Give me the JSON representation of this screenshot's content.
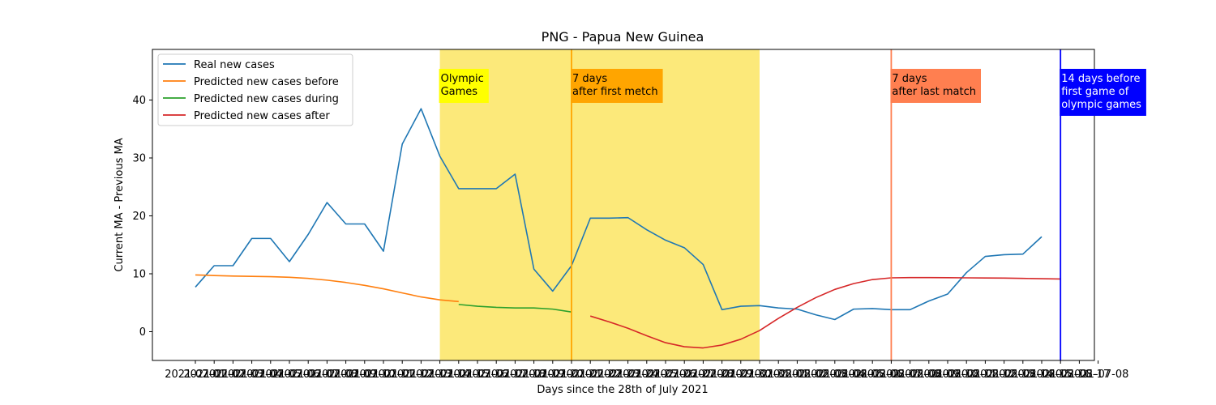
{
  "chart_data": {
    "type": "line",
    "title": "PNG - Papua New Guinea",
    "xlabel": "Days since the 28th of July 2021",
    "ylabel": "Current MA - Previous MA",
    "ylim": [
      -5,
      48.5
    ],
    "yticks": [
      0,
      10,
      20,
      30,
      40
    ],
    "x_tick_labels": [
      "2021-07-01",
      "2021-07-02",
      "2021-07-03",
      "2021-07-04",
      "2021-07-05",
      "2021-07-06",
      "2021-07-07",
      "2021-07-08",
      "2021-07-09",
      "2021-07-10",
      "2021-07-11",
      "2021-07-12",
      "2021-07-13",
      "2021-07-14",
      "2021-07-15",
      "2021-07-16",
      "2021-07-17",
      "2021-07-18",
      "2021-07-19",
      "2021-07-20",
      "2021-07-21",
      "2021-07-22",
      "2021-07-23",
      "2021-07-24",
      "2021-07-25",
      "2021-07-26",
      "2021-07-27",
      "2021-07-28",
      "2021-07-29",
      "2021-07-30",
      "2021-07-31",
      "2021-08-01",
      "2021-08-02",
      "2021-08-03",
      "2021-08-04",
      "2021-08-05",
      "2021-08-06",
      "2021-08-07",
      "2021-08-08",
      "2021-08-09",
      "2021-08-10",
      "2021-08-11",
      "2021-08-12",
      "2021-08-13",
      "2021-08-14",
      "2021-08-15",
      "2021-08-16",
      "2021-08-17",
      "2021-07-08"
    ],
    "series": [
      {
        "name": "Real new cases",
        "color": "#1f77b4",
        "start": 0,
        "values": [
          7.7,
          11.4,
          11.4,
          16.1,
          16.1,
          12.1,
          16.8,
          22.3,
          18.6,
          18.6,
          13.9,
          32.4,
          38.5,
          30.3,
          24.7,
          24.7,
          24.7,
          27.2,
          10.8,
          7.0,
          11.4,
          19.6,
          19.6,
          19.7,
          17.6,
          15.8,
          14.5,
          11.6,
          3.8,
          4.4,
          4.5,
          4.1,
          3.9,
          2.9,
          2.1,
          3.9,
          4.0,
          3.8,
          3.8,
          5.3,
          6.5,
          10.2,
          13.0,
          13.3,
          13.4,
          16.4
        ]
      },
      {
        "name": "Predicted new cases before",
        "color": "#ff7f0e",
        "start": 0,
        "values": [
          9.8,
          9.7,
          9.6,
          9.55,
          9.5,
          9.4,
          9.2,
          8.9,
          8.5,
          8.0,
          7.4,
          6.7,
          6.0,
          5.5,
          5.2
        ]
      },
      {
        "name": "Predicted new cases during",
        "color": "#2ca02c",
        "start": 14,
        "values": [
          4.7,
          4.4,
          4.2,
          4.1,
          4.1,
          3.9,
          3.4
        ]
      },
      {
        "name": "Predicted new cases after",
        "color": "#d62728",
        "start": 21,
        "values": [
          2.7,
          1.7,
          0.6,
          -0.7,
          -1.9,
          -2.6,
          -2.8,
          -2.3,
          -1.3,
          0.2,
          2.3,
          4.2,
          5.9,
          7.3,
          8.3,
          9.0,
          9.3,
          9.35,
          9.35,
          9.33,
          9.3,
          9.28,
          9.25,
          9.2,
          9.15,
          9.1
        ]
      }
    ],
    "shaded_span": {
      "from": 13,
      "to": 30,
      "color": "#fce97a"
    },
    "vlines": [
      {
        "x": 20,
        "color": "#ffa500",
        "label": "7 days\nafter first metch",
        "box_color": "#ffa500",
        "text_color": "#000000"
      },
      {
        "x": 37,
        "color": "#ff7f50",
        "label": "7 days\nafter last match",
        "box_color": "#ff7f50",
        "text_color": "#000000"
      },
      {
        "x": 46,
        "color": "#0000ff",
        "label": "14 days before\nfirst game of\nolympic games",
        "box_color": "#0000ff",
        "text_color": "#ffffff"
      }
    ],
    "span_label": {
      "x": 13,
      "label": "Olympic\nGames",
      "box_color": "#ffff00",
      "text_color": "#000000"
    },
    "legend": {
      "position": "upper-left"
    },
    "grid": false
  }
}
